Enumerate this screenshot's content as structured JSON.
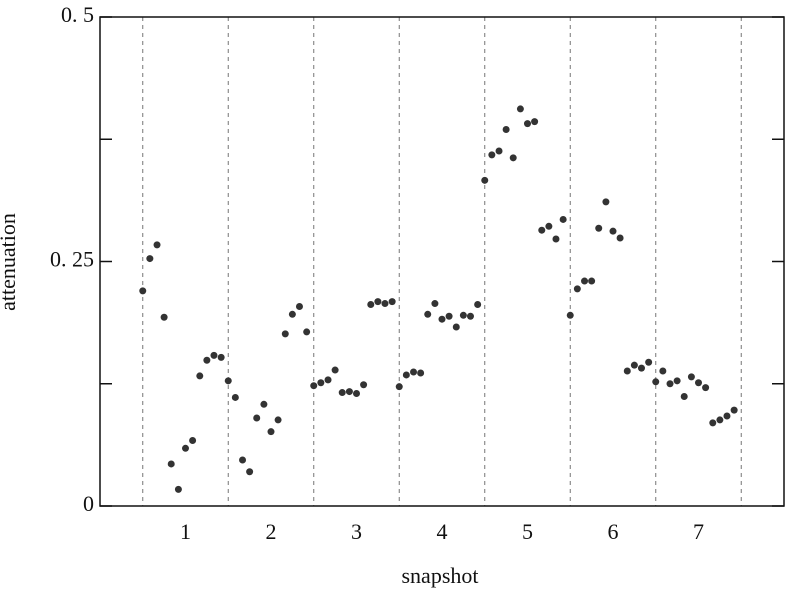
{
  "chart_data": {
    "type": "scatter",
    "x_label": "snapshot",
    "y_label": "attenuation",
    "xlim": [
      0,
      8
    ],
    "ylim": [
      0,
      0.5
    ],
    "xticks": [
      1,
      2,
      3,
      4,
      5,
      6,
      7
    ],
    "xgrid": [
      0.5,
      1.5,
      2.5,
      3.5,
      4.5,
      5.5,
      6.5,
      7.5
    ],
    "yticks": [
      0,
      {
        "value": 0.25,
        "label": "0. 25"
      },
      {
        "value": 0.5,
        "label": "0. 5"
      }
    ],
    "yminor": [
      0.125,
      0.375
    ],
    "series": [
      {
        "color": "#333333",
        "x": [
          0.5,
          0.583,
          0.667,
          0.75,
          0.833,
          0.917,
          1,
          1.083,
          1.167,
          1.25,
          1.333,
          1.417,
          1.5,
          1.583,
          1.667,
          1.75,
          1.833,
          1.917,
          2,
          2.083,
          2.167,
          2.25,
          2.333,
          2.417,
          2.5,
          2.583,
          2.667,
          2.75,
          2.833,
          2.917,
          3,
          3.083,
          3.167,
          3.25,
          3.333,
          3.417,
          3.5,
          3.583,
          3.667,
          3.75,
          3.833,
          3.917,
          4,
          4.083,
          4.167,
          4.25,
          4.333,
          4.417,
          4.5,
          4.583,
          4.667,
          4.75,
          4.833,
          4.917,
          5,
          5.083,
          5.167,
          5.25,
          5.333,
          5.417,
          5.5,
          5.583,
          5.667,
          5.75,
          5.833,
          5.917,
          6,
          6.083,
          6.167,
          6.25,
          6.333,
          6.417,
          6.5,
          6.583,
          6.667,
          6.75,
          6.833,
          6.917,
          7,
          7.083,
          7.167,
          7.25,
          7.333,
          7.417
        ],
        "values": [
          0.22,
          0.253,
          0.267,
          0.193,
          0.043,
          0.017,
          0.059,
          0.067,
          0.133,
          0.149,
          0.154,
          0.152,
          0.128,
          0.111,
          0.047,
          0.035,
          0.09,
          0.104,
          0.076,
          0.088,
          0.176,
          0.196,
          0.204,
          0.178,
          0.123,
          0.126,
          0.129,
          0.139,
          0.116,
          0.117,
          0.115,
          0.124,
          0.206,
          0.209,
          0.207,
          0.209,
          0.122,
          0.134,
          0.137,
          0.136,
          0.196,
          0.207,
          0.191,
          0.194,
          0.183,
          0.195,
          0.194,
          0.206,
          0.333,
          0.359,
          0.363,
          0.385,
          0.356,
          0.406,
          0.391,
          0.393,
          0.282,
          0.286,
          0.273,
          0.293,
          0.195,
          0.222,
          0.23,
          0.23,
          0.284,
          0.311,
          0.281,
          0.274,
          0.138,
          0.144,
          0.141,
          0.147,
          0.127,
          0.138,
          0.125,
          0.128,
          0.112,
          0.132,
          0.126,
          0.121,
          0.085,
          0.088,
          0.092,
          0.098
        ]
      }
    ]
  }
}
